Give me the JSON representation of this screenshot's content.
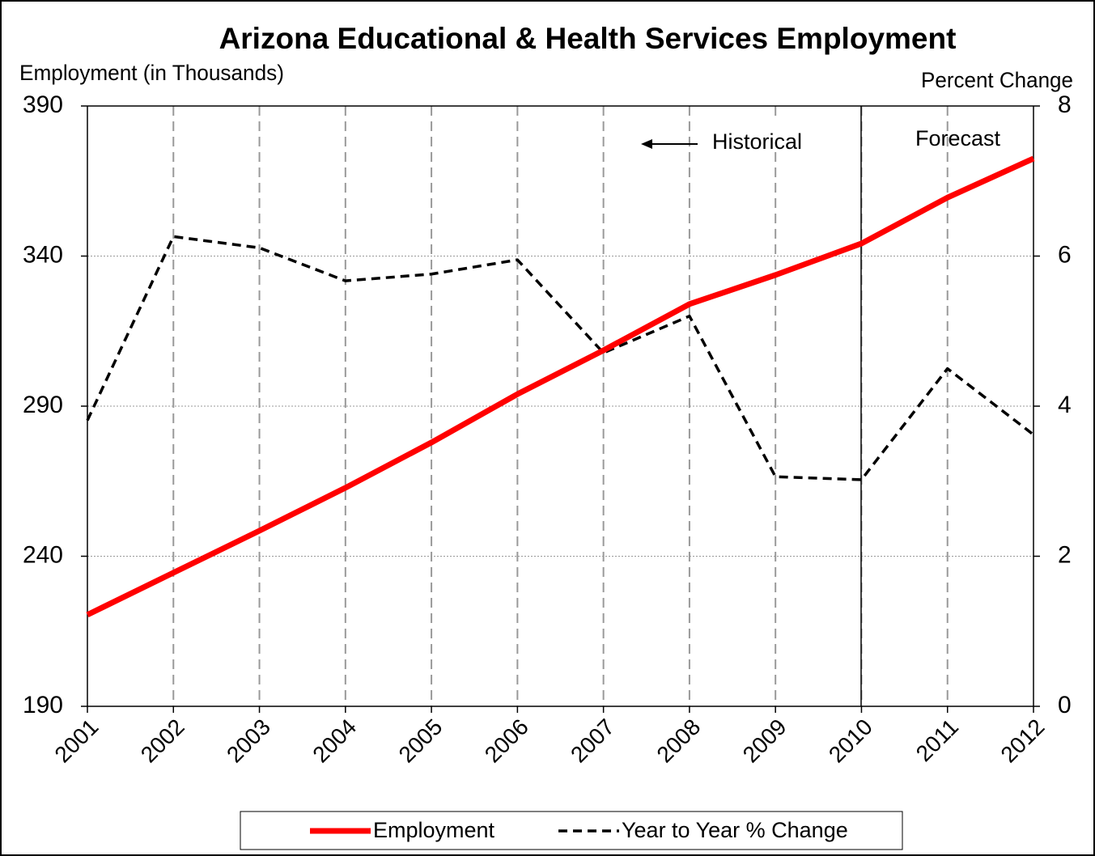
{
  "chart_data": {
    "type": "line",
    "title": "Arizona Educational & Health Services Employment",
    "y_label": "Employment (in Thousands)",
    "y2_label": "Percent Change",
    "annotations": [
      "Historical",
      "Forecast"
    ],
    "categories": [
      "2001",
      "2002",
      "2003",
      "2004",
      "2005",
      "2006",
      "2007",
      "2008",
      "2009",
      "2010",
      "2011",
      "2012"
    ],
    "series": [
      {
        "name": "Employment",
        "color": "#ff0000",
        "values": [
          220.5,
          234.5,
          248.5,
          262.8,
          277.9,
          294,
          308.6,
          324,
          333.7,
          344.2,
          359.5,
          372.5
        ]
      },
      {
        "name": "Year to Year % Change",
        "color": "#000000",
        "axis": "y2",
        "values": [
          3.81,
          6.26,
          6.11,
          5.67,
          5.76,
          5.95,
          4.71,
          5.2,
          3.06,
          3.02,
          4.5,
          3.62
        ]
      }
    ],
    "ylim": [
      190,
      390
    ],
    "yticks": [
      190,
      240,
      290,
      340,
      390
    ],
    "y2lim": [
      0,
      8
    ],
    "y2ticks": [
      0,
      2,
      4,
      6,
      8
    ],
    "grid": true,
    "legend": "bottom"
  }
}
